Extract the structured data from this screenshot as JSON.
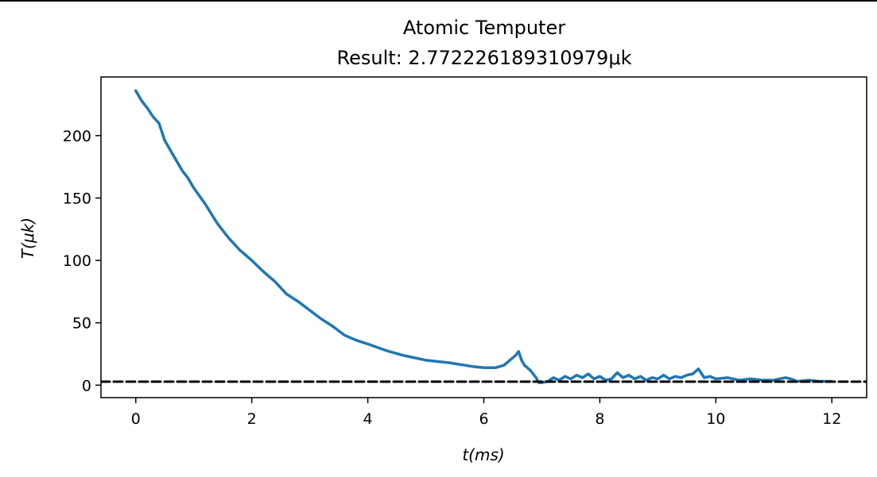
{
  "chart_data": {
    "type": "line",
    "title": "Atomic Temputer",
    "subtitle": "Result: 2.772226189310979μk",
    "xlabel": "t(ms)",
    "ylabel": "T(μk)",
    "xlim": [
      -0.6,
      12.6
    ],
    "ylim": [
      -10,
      247
    ],
    "xticks": [
      0,
      2,
      4,
      6,
      8,
      10,
      12
    ],
    "yticks": [
      0,
      50,
      100,
      150,
      200
    ],
    "grid": false,
    "legend": "none",
    "series": [
      {
        "color": "#1f77b4",
        "x": [
          0,
          0.1,
          0.2,
          0.3,
          0.4,
          0.5,
          0.6,
          0.7,
          0.8,
          0.9,
          1.0,
          1.2,
          1.4,
          1.6,
          1.8,
          2.0,
          2.2,
          2.4,
          2.6,
          2.8,
          3.0,
          3.2,
          3.4,
          3.6,
          3.8,
          4.0,
          4.3,
          4.6,
          5.0,
          5.4,
          5.8,
          6.0,
          6.2,
          6.35,
          6.45,
          6.55,
          6.6,
          6.65,
          6.7,
          6.8,
          6.9,
          6.95,
          7.0,
          7.1,
          7.2,
          7.3,
          7.4,
          7.5,
          7.6,
          7.7,
          7.8,
          7.9,
          8.0,
          8.1,
          8.2,
          8.3,
          8.4,
          8.5,
          8.6,
          8.7,
          8.8,
          8.9,
          9.0,
          9.1,
          9.2,
          9.3,
          9.4,
          9.5,
          9.6,
          9.7,
          9.8,
          9.9,
          10.0,
          10.2,
          10.4,
          10.6,
          10.8,
          11.0,
          11.2,
          11.3,
          11.4,
          11.6,
          11.8,
          12.0
        ],
        "y": [
          236,
          228,
          222,
          215,
          210,
          196,
          188,
          180,
          172,
          166,
          158,
          145,
          130,
          118,
          108,
          100,
          91,
          83,
          73,
          67,
          60,
          53,
          47,
          40,
          36,
          33,
          28,
          24,
          20,
          18,
          15,
          14,
          14,
          16,
          20,
          24,
          27,
          20,
          16,
          12,
          6,
          2,
          2,
          3,
          6,
          4,
          7,
          5,
          8,
          6,
          9,
          5,
          7,
          4,
          5,
          10,
          6,
          8,
          5,
          7,
          4,
          6,
          5,
          8,
          5,
          7,
          6,
          8,
          9,
          13,
          6,
          7,
          5,
          6,
          4,
          5,
          4,
          4,
          6,
          5,
          3,
          4,
          3,
          3
        ]
      },
      {
        "color": "#000000",
        "style": "dashed",
        "x": [
          -0.6,
          12.6
        ],
        "y": [
          2.772226189310979,
          2.772226189310979
        ]
      }
    ]
  }
}
